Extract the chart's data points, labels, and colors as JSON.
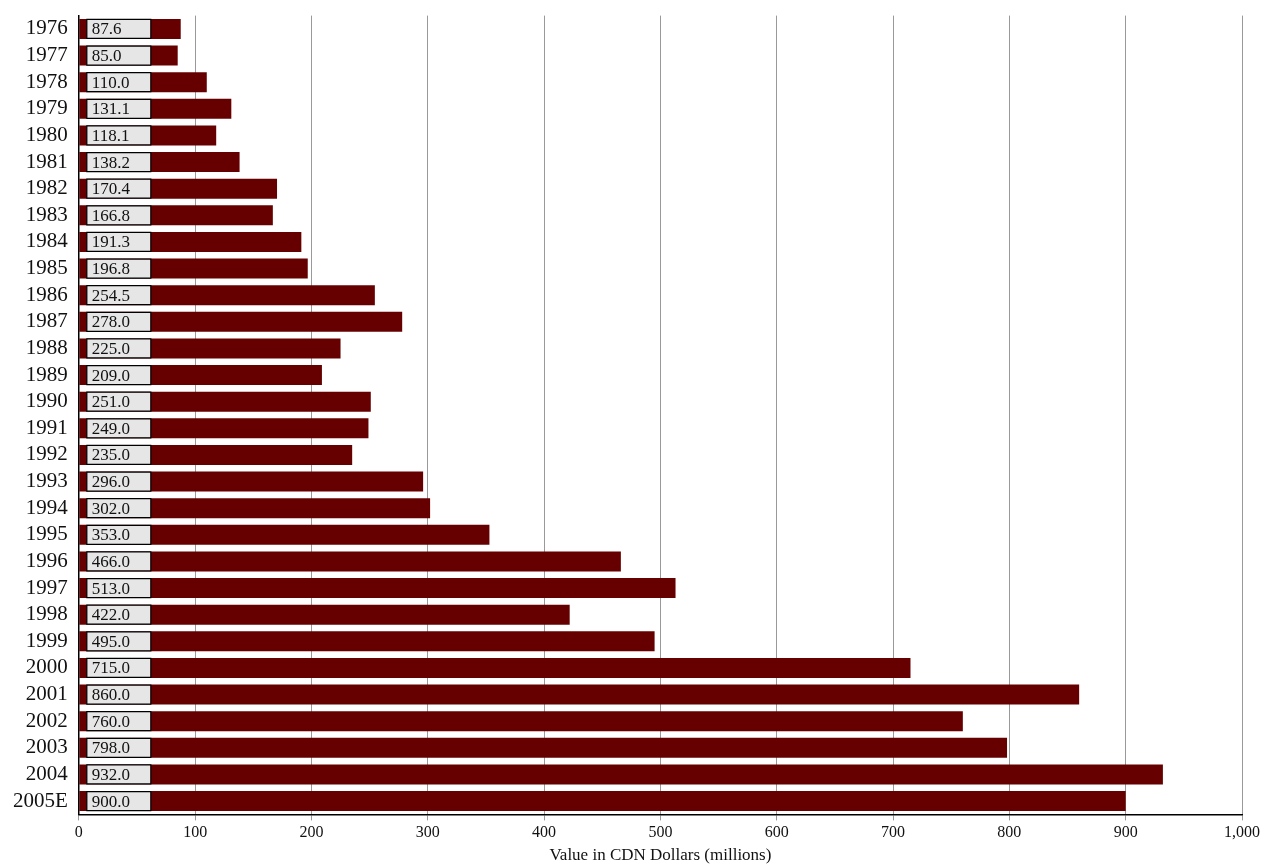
{
  "chart_data": {
    "type": "bar",
    "orientation": "horizontal",
    "xlabel": "Value in CDN Dollars (millions)",
    "categories": [
      "1976",
      "1977",
      "1978",
      "1979",
      "1980",
      "1981",
      "1982",
      "1983",
      "1984",
      "1985",
      "1986",
      "1987",
      "1988",
      "1989",
      "1990",
      "1991",
      "1992",
      "1993",
      "1994",
      "1995",
      "1996",
      "1997",
      "1998",
      "1999",
      "2000",
      "2001",
      "2002",
      "2003",
      "2004",
      "2005E"
    ],
    "values": [
      87.6,
      85.0,
      110.0,
      131.1,
      118.1,
      138.2,
      170.4,
      166.8,
      191.3,
      196.8,
      254.5,
      278.0,
      225.0,
      209.0,
      251.0,
      249.0,
      235.0,
      296.0,
      302.0,
      353.0,
      466.0,
      513.0,
      422.0,
      495.0,
      715.0,
      860.0,
      760.0,
      798.0,
      932.0,
      900.0
    ],
    "value_labels": [
      "87.6",
      "85.0",
      "110.0",
      "131.1",
      "118.1",
      "138.2",
      "170.4",
      "166.8",
      "191.3",
      "196.8",
      "254.5",
      "278.0",
      "225.0",
      "209.0",
      "251.0",
      "249.0",
      "235.0",
      "296.0",
      "302.0",
      "353.0",
      "466.0",
      "513.0",
      "422.0",
      "495.0",
      "715.0",
      "860.0",
      "760.0",
      "798.0",
      "932.0",
      "900.0"
    ],
    "color": "#660000",
    "xlim": [
      0,
      1000
    ],
    "xticks": [
      0,
      100,
      200,
      300,
      400,
      500,
      600,
      700,
      800,
      900,
      {
        "value": 1000,
        "label": "1,000"
      }
    ],
    "grid": "x",
    "legend": false
  }
}
